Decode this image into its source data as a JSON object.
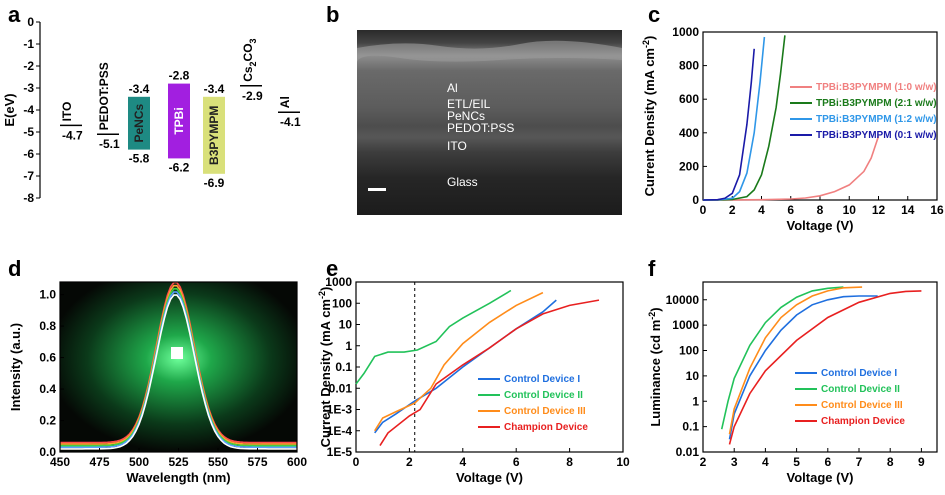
{
  "panel_labels": [
    "a",
    "b",
    "c",
    "d",
    "e",
    "f"
  ],
  "panel_a": {
    "ylabel": "E(eV)",
    "yticks": [
      "0",
      "-1",
      "-2",
      "-3",
      "-4",
      "-5",
      "-6",
      "-7",
      "-8"
    ],
    "levels": [
      {
        "name": "ITO",
        "top": -4.7,
        "bottom": null,
        "label_top": "-4.7",
        "label_bottom": "",
        "color": null
      },
      {
        "name": "PEDOT:PSS",
        "top": -5.1,
        "bottom": null,
        "label_top": "-5.1",
        "label_bottom": "",
        "color": null
      },
      {
        "name": "PeNCs",
        "top": -3.4,
        "bottom": -5.8,
        "label_top": "-3.4",
        "label_bottom": "-5.8",
        "color": "#1e8a83"
      },
      {
        "name": "TPBi",
        "top": -2.8,
        "bottom": -6.2,
        "label_top": "-2.8",
        "label_bottom": "-6.2",
        "color": "#a21fe0"
      },
      {
        "name": "B3PYMPM",
        "top": -3.4,
        "bottom": -6.9,
        "label_top": "-3.4",
        "label_bottom": "-6.9",
        "color": "#d9e07a"
      },
      {
        "name": "Cs2CO3",
        "top": -2.9,
        "bottom": null,
        "label_top": "-2.9",
        "label_bottom": "",
        "color": null
      },
      {
        "name": "Al",
        "top": -4.1,
        "bottom": null,
        "label_top": "-4.1",
        "label_bottom": "",
        "color": null
      }
    ],
    "cs_base": "Cs",
    "cs_sub1": "2",
    "cs_mid": "CO",
    "cs_sub2": "3"
  },
  "panel_b": {
    "layers": [
      "Al",
      "ETL/EIL",
      "PeNCs",
      "PEDOT:PSS",
      "ITO",
      "Glass"
    ]
  },
  "chart_data": [
    {
      "panel": "c",
      "type": "line",
      "xlabel": "Voltage (V)",
      "ylabel": "Current Density (mA cm",
      "ylabel_sup": "-2",
      "ylabel_end": ")",
      "xlim": [
        0,
        16
      ],
      "ylim": [
        0,
        1000
      ],
      "xticks": [
        0,
        2,
        4,
        6,
        8,
        10,
        12,
        14,
        16
      ],
      "yticks": [
        0,
        200,
        400,
        600,
        800,
        1000
      ],
      "series": [
        {
          "name": "TPBi:B3PYMPM (1:0 w/w)",
          "color": "#f08080",
          "points": [
            [
              0,
              0
            ],
            [
              2,
              0.5
            ],
            [
              4,
              2
            ],
            [
              6,
              6
            ],
            [
              7,
              12
            ],
            [
              8,
              25
            ],
            [
              9,
              50
            ],
            [
              10,
              90
            ],
            [
              11,
              170
            ],
            [
              11.5,
              250
            ],
            [
              12,
              380
            ]
          ]
        },
        {
          "name": "TPBi:B3PYMPM (2:1 w/w)",
          "color": "#1a7a1a",
          "points": [
            [
              0,
              0
            ],
            [
              1,
              0.5
            ],
            [
              2,
              3
            ],
            [
              3,
              20
            ],
            [
              3.5,
              60
            ],
            [
              4,
              150
            ],
            [
              4.5,
              320
            ],
            [
              5,
              550
            ],
            [
              5.3,
              750
            ],
            [
              5.6,
              980
            ]
          ]
        },
        {
          "name": "TPBi:B3PYMPM (1:2 w/w)",
          "color": "#2f97e8",
          "points": [
            [
              0,
              0
            ],
            [
              1,
              1
            ],
            [
              2,
              10
            ],
            [
              2.5,
              50
            ],
            [
              3,
              160
            ],
            [
              3.5,
              400
            ],
            [
              3.9,
              700
            ],
            [
              4.2,
              970
            ]
          ]
        },
        {
          "name": "TPBi:B3PYMPM (0:1 w/w)",
          "color": "#1a1aa8",
          "points": [
            [
              0,
              0
            ],
            [
              1,
              2
            ],
            [
              1.5,
              10
            ],
            [
              2,
              40
            ],
            [
              2.5,
              150
            ],
            [
              3,
              450
            ],
            [
              3.3,
              700
            ],
            [
              3.5,
              900
            ]
          ]
        }
      ]
    },
    {
      "panel": "d",
      "type": "line",
      "xlabel": "Wavelength (nm)",
      "ylabel": "Intensity (a.u.)",
      "xlim": [
        450,
        600
      ],
      "ylim": [
        0,
        1.08
      ],
      "xticks": [
        450,
        475,
        500,
        525,
        550,
        575,
        600
      ],
      "yticks": [
        "0.0",
        "0.2",
        "0.4",
        "0.6",
        "0.8",
        "1.0"
      ],
      "peak_nm": 523,
      "series": [
        {
          "color": "#ff4a4a",
          "peak": 1.08,
          "baseline": 0.06
        },
        {
          "color": "#ffa030",
          "peak": 1.06,
          "baseline": 0.05
        },
        {
          "color": "#40d040",
          "peak": 1.04,
          "baseline": 0.04
        },
        {
          "color": "#5aa0ff",
          "peak": 1.02,
          "baseline": 0.03
        },
        {
          "color": "#ffffff",
          "peak": 1.0,
          "baseline": 0.02
        }
      ]
    },
    {
      "panel": "e",
      "type": "line",
      "xlabel": "Voltage (V)",
      "ylabel": "Current Density (mA cm",
      "ylabel_sup": "-2",
      "ylabel_end": ")",
      "xlim": [
        0,
        10
      ],
      "ylog": [
        -5,
        3
      ],
      "xticks": [
        0,
        2,
        4,
        6,
        8,
        10
      ],
      "yticks": [
        "1000",
        "100",
        "10",
        "1",
        "0.1",
        "0.01",
        "1E-3",
        "1E-4",
        "1E-5"
      ],
      "vline_x": 2.2,
      "series": [
        {
          "name": "Control Device I",
          "color": "#1f6fdf",
          "points": [
            [
              0.7,
              -4.1
            ],
            [
              1.0,
              -3.6
            ],
            [
              1.5,
              -3.2
            ],
            [
              2.2,
              -2.6
            ],
            [
              3,
              -2.0
            ],
            [
              4,
              -1.0
            ],
            [
              5,
              -0.1
            ],
            [
              6,
              0.8
            ],
            [
              7,
              1.6
            ],
            [
              7.5,
              2.15
            ]
          ]
        },
        {
          "name": "Control Device II",
          "color": "#22c25a",
          "points": [
            [
              0,
              -1.8
            ],
            [
              0.3,
              -1.3
            ],
            [
              0.7,
              -0.5
            ],
            [
              1.2,
              -0.3
            ],
            [
              1.8,
              -0.3
            ],
            [
              2.3,
              -0.2
            ],
            [
              3,
              0.2
            ],
            [
              3.5,
              0.9
            ],
            [
              4,
              1.3
            ],
            [
              5,
              2.0
            ],
            [
              5.8,
              2.6
            ]
          ]
        },
        {
          "name": "Control Device III",
          "color": "#ff8c1a",
          "points": [
            [
              0.7,
              -4.0
            ],
            [
              1.0,
              -3.4
            ],
            [
              1.5,
              -3.1
            ],
            [
              2.2,
              -2.7
            ],
            [
              2.8,
              -2.0
            ],
            [
              3.3,
              -0.9
            ],
            [
              4,
              0.1
            ],
            [
              5,
              1.1
            ],
            [
              6,
              1.9
            ],
            [
              7,
              2.5
            ]
          ]
        },
        {
          "name": "Champion Device",
          "color": "#e82020",
          "points": [
            [
              0.9,
              -4.7
            ],
            [
              1.2,
              -4.1
            ],
            [
              2.0,
              -3.3
            ],
            [
              2.4,
              -3.0
            ],
            [
              3,
              -1.8
            ],
            [
              4,
              -0.9
            ],
            [
              5,
              -0.1
            ],
            [
              6,
              0.8
            ],
            [
              7,
              1.5
            ],
            [
              8,
              1.9
            ],
            [
              9.1,
              2.15
            ]
          ]
        }
      ]
    },
    {
      "panel": "f",
      "type": "line",
      "xlabel": "Voltage (V)",
      "ylabel": "Luminance (cd m",
      "ylabel_sup": "-2",
      "ylabel_end": ")",
      "xlim": [
        2,
        9.5
      ],
      "ylog": [
        -2,
        4.7
      ],
      "xticks": [
        2,
        3,
        4,
        5,
        6,
        7,
        8,
        9
      ],
      "yticks": [
        "10000",
        "1000",
        "100",
        "10",
        "1",
        "0.1",
        "0.01"
      ],
      "series": [
        {
          "name": "Control Device I",
          "color": "#1f6fdf",
          "points": [
            [
              2.85,
              -1.5
            ],
            [
              3,
              -0.5
            ],
            [
              3.5,
              1.0
            ],
            [
              4,
              2.0
            ],
            [
              4.5,
              2.8
            ],
            [
              5,
              3.4
            ],
            [
              5.5,
              3.8
            ],
            [
              6,
              4.0
            ],
            [
              6.5,
              4.12
            ],
            [
              7,
              4.15
            ],
            [
              7.6,
              4.15
            ]
          ]
        },
        {
          "name": "Control Device II",
          "color": "#22c25a",
          "points": [
            [
              2.6,
              -1.1
            ],
            [
              2.8,
              0.0
            ],
            [
              3,
              0.9
            ],
            [
              3.5,
              2.2
            ],
            [
              4,
              3.1
            ],
            [
              4.5,
              3.7
            ],
            [
              5,
              4.1
            ],
            [
              5.5,
              4.35
            ],
            [
              6,
              4.45
            ],
            [
              6.5,
              4.5
            ]
          ]
        },
        {
          "name": "Control Device III",
          "color": "#ff8c1a",
          "points": [
            [
              2.85,
              -1.3
            ],
            [
              3,
              -0.3
            ],
            [
              3.5,
              1.3
            ],
            [
              4,
              2.5
            ],
            [
              4.5,
              3.3
            ],
            [
              5,
              3.8
            ],
            [
              5.5,
              4.15
            ],
            [
              6,
              4.35
            ],
            [
              6.5,
              4.47
            ],
            [
              7.1,
              4.5
            ]
          ]
        },
        {
          "name": "Champion Device",
          "color": "#e82020",
          "points": [
            [
              2.85,
              -1.7
            ],
            [
              3,
              -1.0
            ],
            [
              3.5,
              0.3
            ],
            [
              4,
              1.2
            ],
            [
              5,
              2.4
            ],
            [
              6,
              3.3
            ],
            [
              7,
              3.9
            ],
            [
              8,
              4.25
            ],
            [
              8.5,
              4.33
            ],
            [
              9,
              4.35
            ]
          ]
        }
      ]
    }
  ]
}
